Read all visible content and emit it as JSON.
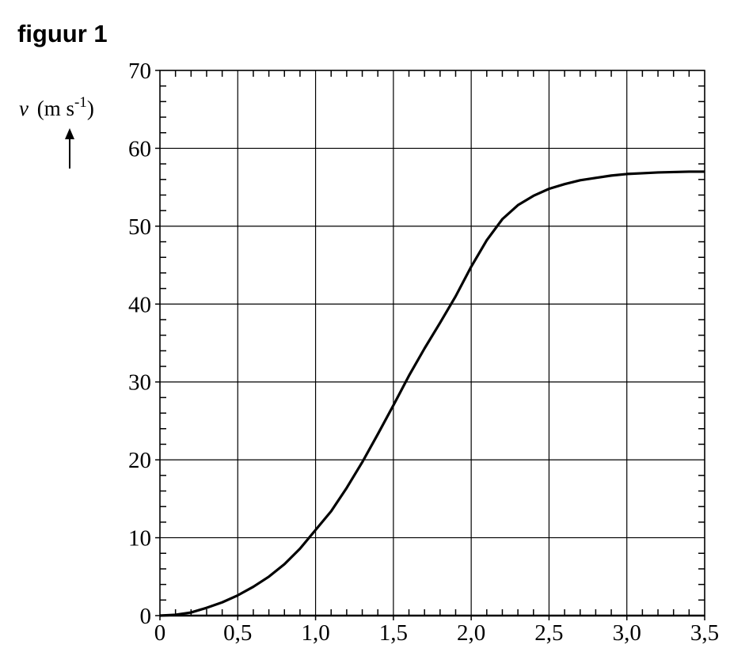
{
  "chart_data": {
    "type": "line",
    "title": "figuur 1",
    "ylabel_parts": [
      "v",
      "(m s",
      "-1",
      ")"
    ],
    "x": [
      0,
      0.1,
      0.2,
      0.3,
      0.4,
      0.5,
      0.6,
      0.7,
      0.8,
      0.9,
      1.0,
      1.1,
      1.2,
      1.3,
      1.4,
      1.5,
      1.6,
      1.7,
      1.8,
      1.9,
      2.0,
      2.1,
      2.2,
      2.3,
      2.4,
      2.5,
      2.6,
      2.7,
      2.8,
      2.9,
      3.0,
      3.1,
      3.2,
      3.3,
      3.4,
      3.5
    ],
    "series": [
      {
        "name": "v",
        "color": "#000000",
        "values": [
          0,
          0.1,
          0.4,
          1.0,
          1.7,
          2.6,
          3.7,
          5.0,
          6.6,
          8.6,
          11,
          13.4,
          16.4,
          19.7,
          23.3,
          27,
          30.8,
          34.3,
          37.6,
          41,
          44.8,
          48.2,
          50.9,
          52.7,
          53.9,
          54.8,
          55.4,
          55.9,
          56.2,
          56.5,
          56.7,
          56.8,
          56.9,
          56.95,
          57.0,
          57.0
        ]
      }
    ],
    "xlim": [
      0,
      3.5
    ],
    "ylim": [
      0,
      70
    ],
    "xticks": [
      0,
      {
        "value": 0.5,
        "label": "0,5"
      },
      {
        "value": 1.0,
        "label": "1,0"
      },
      {
        "value": 1.5,
        "label": "1,5"
      },
      {
        "value": 2.0,
        "label": "2,0"
      },
      {
        "value": 2.5,
        "label": "2,5"
      },
      {
        "value": 3.0,
        "label": "3,0"
      },
      {
        "value": 3.5,
        "label": "3,5"
      }
    ],
    "yticks": [
      0,
      10,
      20,
      30,
      40,
      50,
      60,
      70
    ],
    "x_minor_ticks": [
      0.1,
      0.2,
      0.3,
      0.4,
      0.6,
      0.7,
      0.8,
      0.9,
      1.1,
      1.2,
      1.3,
      1.4,
      1.6,
      1.7,
      1.8,
      1.9,
      2.1,
      2.2,
      2.3,
      2.4,
      2.6,
      2.7,
      2.8,
      2.9,
      3.1,
      3.2,
      3.3,
      3.4
    ],
    "y_minor_ticks": [
      2,
      4,
      6,
      8,
      12,
      14,
      16,
      18,
      22,
      24,
      26,
      28,
      32,
      34,
      36,
      38,
      42,
      44,
      46,
      48,
      52,
      54,
      56,
      58,
      62,
      64,
      66,
      68
    ],
    "grid": true
  }
}
